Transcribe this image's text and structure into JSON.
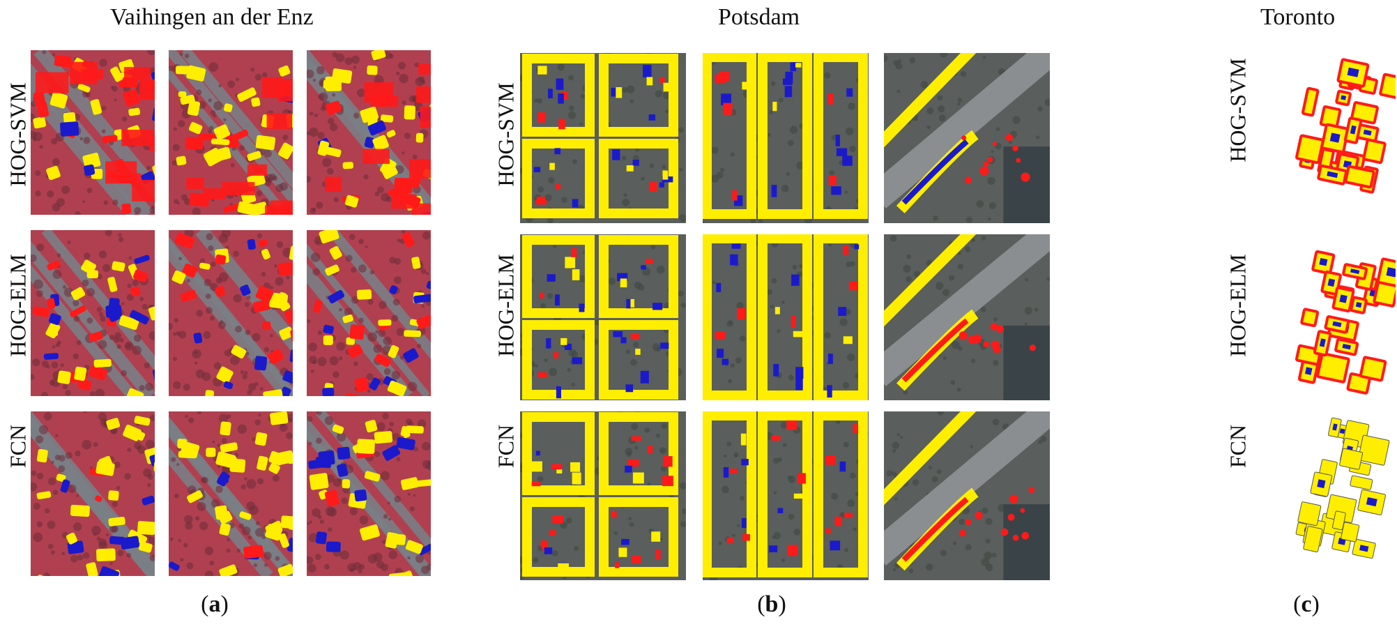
{
  "groups": [
    {
      "title": "Vaihingen an der Enz",
      "caption_open": "(",
      "caption_letter": "a",
      "caption_close": ")",
      "rows": [
        "HOG-SVM",
        "HOG-ELM",
        "FCN"
      ],
      "style": "vaihingen"
    },
    {
      "title": "Potsdam",
      "caption_open": "(",
      "caption_letter": "b",
      "caption_close": ")",
      "rows": [
        "HOG-SVM",
        "HOG-ELM",
        "FCN"
      ],
      "style": "potsdam"
    },
    {
      "title": "Toronto",
      "caption_open": "(",
      "caption_letter": "c",
      "caption_close": ")",
      "rows": [
        "HOG-SVM",
        "HOG-ELM",
        "FCN"
      ],
      "style": "toronto"
    }
  ],
  "colors": {
    "true_positive": "#ffee00",
    "false_positive": "#ff1a1a",
    "false_negative": "#1a1acc",
    "vaihingen_ground": "#b04050",
    "potsdam_ground": "#5a5e5c",
    "toronto_ground": "#ffffff"
  }
}
